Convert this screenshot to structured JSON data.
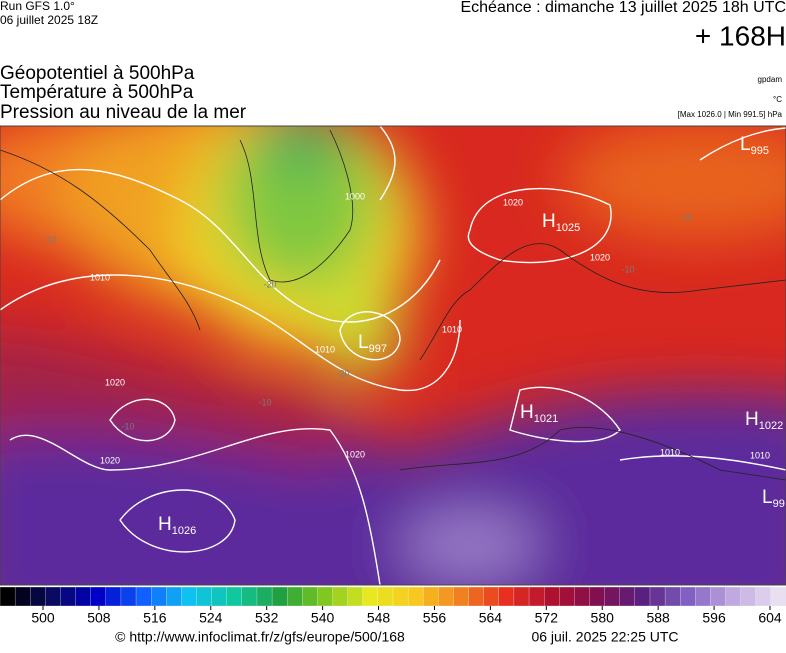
{
  "header": {
    "run": "Run GFS 1.0°",
    "run_date": "06 juillet 2025 18Z",
    "valid": "Echéance : dimanche 13 juillet 2025 18h UTC",
    "lead": "+ 168H",
    "layers": [
      "Géopotentiel à 500hPa",
      "Température à 500hPa",
      "Pression au niveau de la mer"
    ],
    "unit_geo": "gpdam",
    "unit_temp": "°C",
    "pressure_range": "[Max 1026.0 | Min 991.5] hPa"
  },
  "map": {
    "centers": [
      {
        "type": "L",
        "value": 995
      },
      {
        "type": "H",
        "value": 1025
      },
      {
        "type": "L",
        "value": 997
      },
      {
        "type": "H",
        "value": 1021
      },
      {
        "type": "H",
        "value": 1022
      },
      {
        "type": "L",
        "value": 99
      },
      {
        "type": "H",
        "value": 1026
      }
    ],
    "contour_labels": [
      1020,
      1000,
      1010,
      1020,
      1020,
      1020,
      1010,
      1010,
      1020,
      -10,
      -20,
      -20,
      -10,
      -10,
      -10,
      -20,
      1010,
      1010
    ]
  },
  "colorbar": {
    "ticks": [
      500,
      508,
      516,
      524,
      532,
      540,
      548,
      556,
      564,
      572,
      580,
      588,
      596,
      604
    ]
  },
  "footer": {
    "source": "© http://www.infoclimat.fr/z/gfs/europe/500/168",
    "generated": "06 juil. 2025 22:25 UTC"
  }
}
